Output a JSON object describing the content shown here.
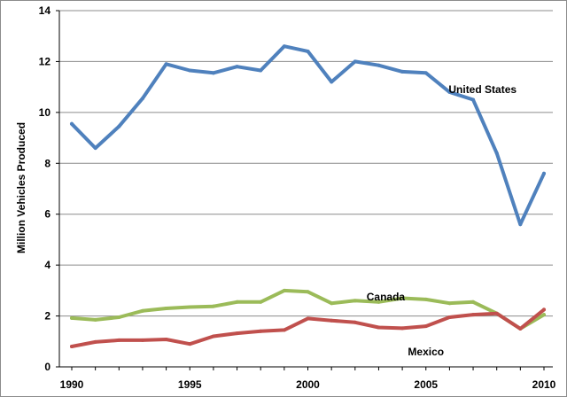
{
  "chart_data": {
    "type": "line",
    "title": "",
    "xlabel": "",
    "ylabel": "Million Vehicles Produced",
    "x": [
      1990,
      1991,
      1992,
      1993,
      1994,
      1995,
      1996,
      1997,
      1998,
      1999,
      2000,
      2001,
      2002,
      2003,
      2004,
      2005,
      2006,
      2007,
      2008,
      2009,
      2010
    ],
    "xlim": [
      1990,
      2010
    ],
    "ylim": [
      0,
      14
    ],
    "x_ticks": [
      1990,
      1995,
      2000,
      2005,
      2010
    ],
    "y_ticks": [
      0,
      2,
      4,
      6,
      8,
      10,
      12,
      14
    ],
    "grid": "horizontal",
    "legend": "none",
    "series": [
      {
        "name": "United States",
        "color": "#4f81bd",
        "values": [
          9.55,
          8.6,
          9.45,
          10.55,
          11.9,
          11.65,
          11.55,
          11.8,
          11.65,
          12.6,
          12.4,
          11.2,
          12.0,
          11.85,
          11.6,
          11.55,
          10.8,
          10.5,
          8.4,
          5.6,
          7.6
        ]
      },
      {
        "name": "Canada",
        "color": "#9bbb59",
        "values": [
          1.92,
          1.85,
          1.95,
          2.2,
          2.3,
          2.35,
          2.38,
          2.55,
          2.55,
          3.0,
          2.95,
          2.5,
          2.6,
          2.55,
          2.7,
          2.65,
          2.5,
          2.55,
          2.1,
          1.5,
          2.05
        ]
      },
      {
        "name": "Mexico",
        "color": "#c0504d",
        "values": [
          0.8,
          0.98,
          1.05,
          1.05,
          1.08,
          0.9,
          1.2,
          1.32,
          1.4,
          1.45,
          1.9,
          1.82,
          1.75,
          1.55,
          1.52,
          1.6,
          1.95,
          2.05,
          2.1,
          1.5,
          2.25
        ]
      }
    ]
  }
}
